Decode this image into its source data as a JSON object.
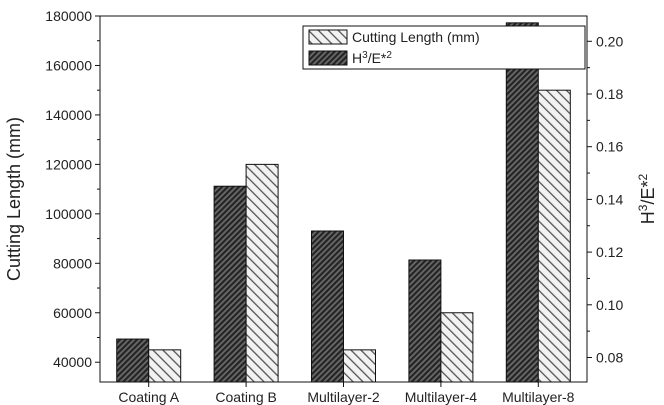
{
  "chart_data": {
    "type": "bar",
    "categories": [
      "Coating A",
      "Coating B",
      "Multilayer-2",
      "Multilayer-4",
      "Multilayer-8"
    ],
    "series": [
      {
        "name": "H3/E*2",
        "axis": "right",
        "pattern": "dense-dark-hatch",
        "values": [
          0.087,
          0.145,
          0.128,
          0.117,
          0.207
        ]
      },
      {
        "name": "Cutting Length (mm)",
        "axis": "left",
        "pattern": "light-hatch",
        "values": [
          45000,
          120000,
          45000,
          60000,
          150000
        ]
      }
    ],
    "left_axis": {
      "label": "Cutting Length (mm)",
      "ylim": [
        32000,
        180000
      ],
      "ticks": [
        40000,
        60000,
        80000,
        100000,
        120000,
        140000,
        160000,
        180000
      ]
    },
    "right_axis": {
      "label": "H3/E*2",
      "ylim": [
        0.0707,
        0.2096
      ],
      "ticks": [
        0.08,
        0.1,
        0.12,
        0.14,
        0.16,
        0.18,
        0.2
      ],
      "tick_labels": [
        "0.08",
        "0.10",
        "0.12",
        "0.14",
        "0.16",
        "0.18",
        "0.20"
      ]
    },
    "legend": {
      "placement": "top-right",
      "entries": [
        {
          "label": "Cutting Length (mm)",
          "pattern": "light-hatch"
        },
        {
          "label": "H3/E*2",
          "pattern": "dense-dark-hatch"
        }
      ]
    },
    "colors": {
      "dark_fill": "#3a3a3a",
      "light_fill": "#e8e8e8",
      "outline": "#111111"
    }
  }
}
